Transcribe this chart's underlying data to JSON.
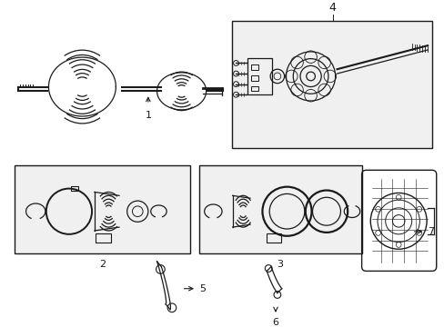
{
  "bg_color": "#ffffff",
  "line_color": "#1a1a1a",
  "box_fill": "#f0f0f0",
  "fig_width": 4.89,
  "fig_height": 3.6,
  "dpi": 100
}
